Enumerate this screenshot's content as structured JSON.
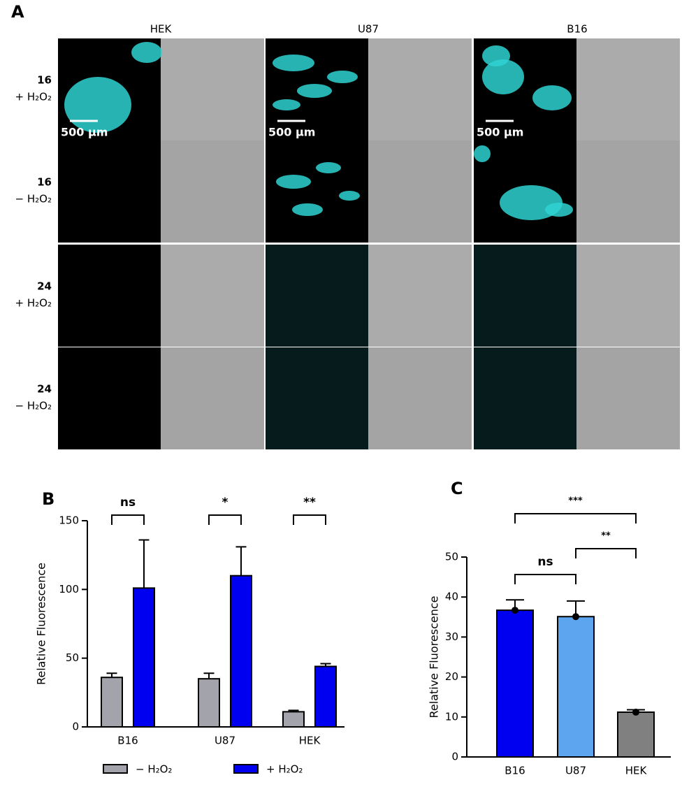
{
  "panel_a": {
    "label": "A",
    "columns": [
      "HEK",
      "U87",
      "B16"
    ],
    "rows": [
      {
        "compound": "16",
        "condition": "+ H₂O₂"
      },
      {
        "compound": "16",
        "condition": "− H₂O₂"
      },
      {
        "compound": "24",
        "condition": "+ H₂O₂"
      },
      {
        "compound": "24",
        "condition": "− H₂O₂"
      }
    ],
    "scale_bar": [
      "500 µm",
      "500 µm",
      "500 µm"
    ]
  },
  "chart_data": [
    {
      "type": "grouped-bar",
      "panel_label": "B",
      "ylabel": "Relative Fluorescence",
      "categories": [
        "B16",
        "U87",
        "HEK"
      ],
      "series": [
        {
          "name": "− H₂O₂",
          "color": "#a3a3ab",
          "values": [
            36,
            35,
            11
          ],
          "errors": [
            3,
            4,
            1
          ]
        },
        {
          "name": "+ H₂O₂",
          "color": "#0000f0",
          "values": [
            101,
            110,
            44
          ],
          "errors": [
            35,
            21,
            2
          ]
        }
      ],
      "ylim": [
        0,
        150
      ],
      "yticks": [
        0,
        50,
        100,
        150
      ],
      "annotations": [
        "ns",
        "*",
        "**"
      ]
    },
    {
      "type": "bar",
      "panel_label": "C",
      "ylabel": "Relative Fluorescence",
      "categories": [
        "B16",
        "U87",
        "HEK"
      ],
      "values": [
        36.7,
        35.1,
        11.2
      ],
      "errors": [
        2.6,
        3.9,
        0.6
      ],
      "colors": [
        "#0000f0",
        "#5ea5f0",
        "#808080"
      ],
      "ylim": [
        0,
        50
      ],
      "yticks": [
        0,
        10,
        20,
        30,
        40,
        50
      ],
      "annotations": [
        "***",
        "**",
        "ns"
      ]
    }
  ]
}
